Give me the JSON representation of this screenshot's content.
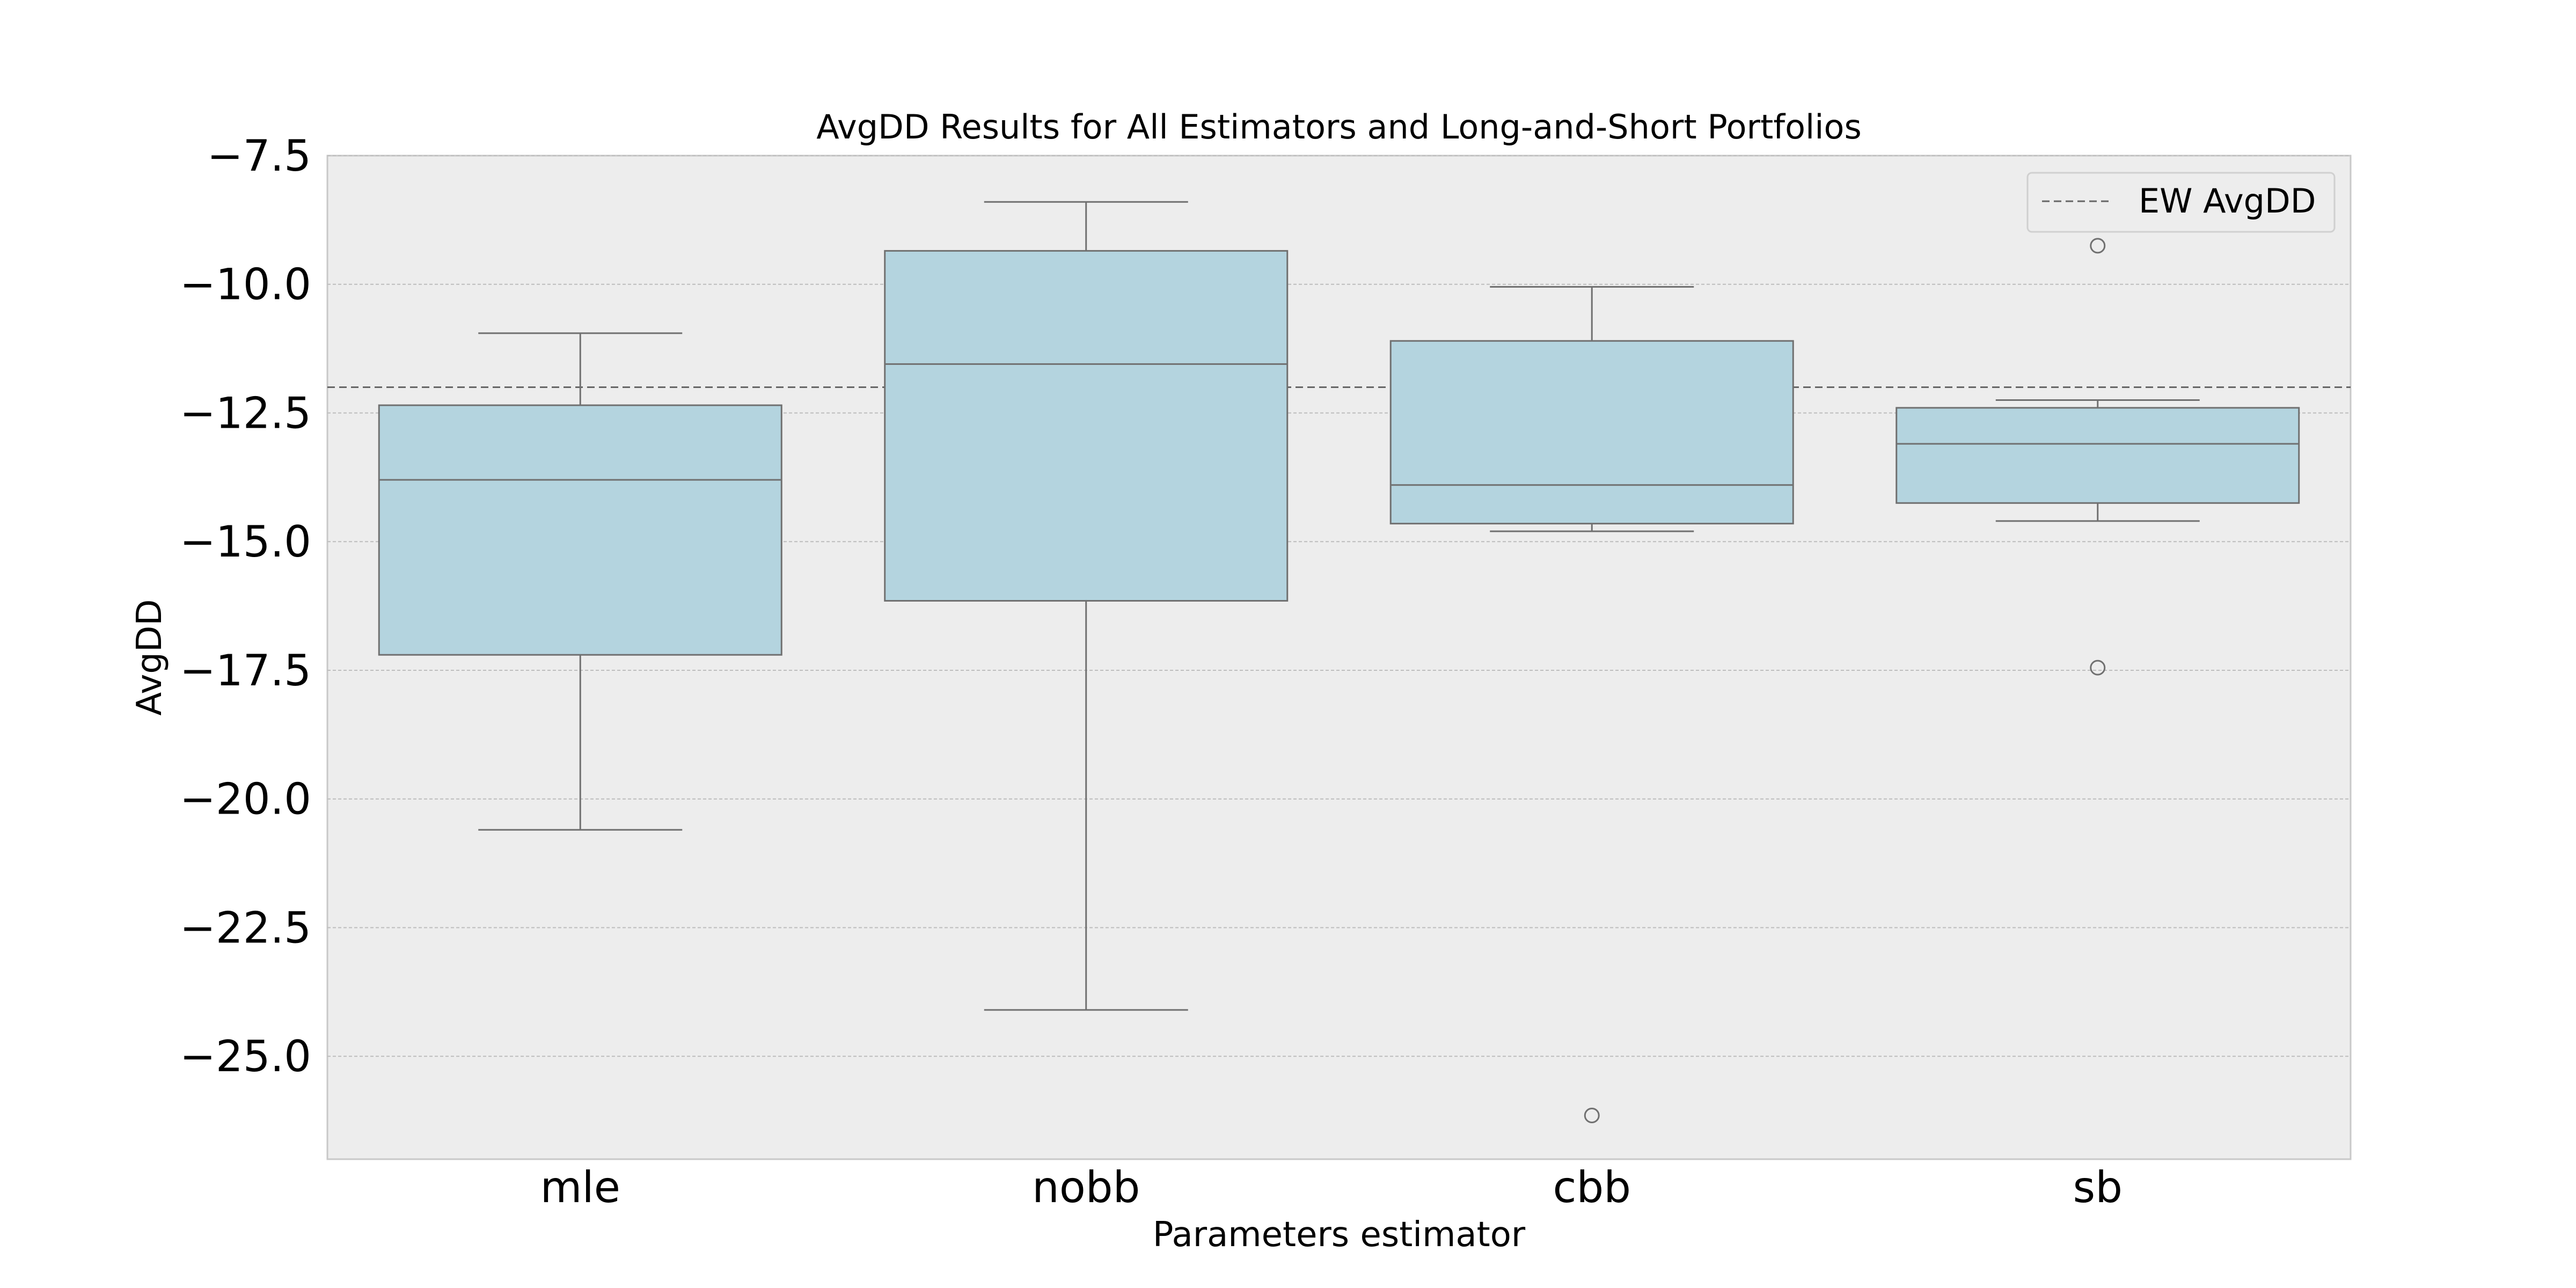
{
  "chart_data": {
    "type": "box",
    "title": "AvgDD Results for All Estimators and Long-and-Short Portfolios",
    "xlabel": "Parameters estimator",
    "ylabel": "AvgDD",
    "categories": [
      "mle",
      "nobb",
      "cbb",
      "sb"
    ],
    "ylim": [
      -27.0,
      -7.5
    ],
    "yticks": [
      -7.5,
      -10.0,
      -12.5,
      -15.0,
      -17.5,
      -20.0,
      -22.5,
      -25.0
    ],
    "ytick_labels": [
      "−7.5",
      "−10.0",
      "−12.5",
      "−15.0",
      "−17.5",
      "−20.0",
      "−22.5",
      "−25.0"
    ],
    "grid": "horizontal dashed",
    "legend": {
      "position": "top-right",
      "entries": [
        "EW AvgDD"
      ]
    },
    "reference_line": {
      "name": "EW AvgDD",
      "y": -12.0
    },
    "boxes": [
      {
        "category": "mle",
        "whisker_low": -20.6,
        "q1": -17.2,
        "median": -13.8,
        "q3": -12.35,
        "whisker_high": -10.95,
        "outliers": []
      },
      {
        "category": "nobb",
        "whisker_low": -24.1,
        "q1": -16.15,
        "median": -11.55,
        "q3": -9.35,
        "whisker_high": -8.4,
        "outliers": []
      },
      {
        "category": "cbb",
        "whisker_low": -14.8,
        "q1": -14.65,
        "median": -13.9,
        "q3": -11.1,
        "whisker_high": -10.05,
        "outliers": [
          -26.15
        ]
      },
      {
        "category": "sb",
        "whisker_low": -14.6,
        "q1": -14.25,
        "median": -13.1,
        "q3": -12.4,
        "whisker_high": -12.25,
        "outliers": [
          -9.25,
          -17.45
        ]
      }
    ],
    "colors": {
      "box_fill": "#b4d4df",
      "box_edge": "#707070",
      "plot_background": "#ededed",
      "reference_line": "#666666"
    }
  }
}
